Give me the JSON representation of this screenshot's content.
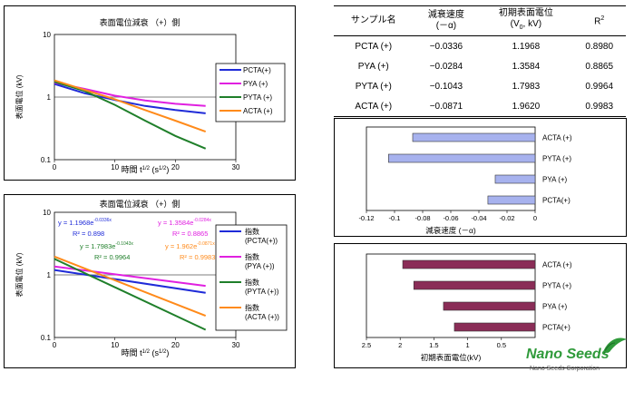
{
  "chart_data": [
    {
      "type": "line",
      "title": "表面電位減衰 （+）側",
      "xlabel": "時間 t1/2 (s1/2)",
      "ylabel": "表面電位 (kV)",
      "xlim": [
        0,
        30
      ],
      "ylim": [
        0.1,
        10
      ],
      "yscale": "log",
      "x_ticks": [
        "0",
        "10",
        "20",
        "30"
      ],
      "y_ticks": [
        "0.1",
        "1",
        "10"
      ],
      "legend_placement": "right",
      "series": [
        {
          "name": "PCTA(+)",
          "color": "#1f2bd8",
          "x": [
            0,
            5,
            10,
            15,
            20,
            25
          ],
          "y": [
            1.62,
            1.15,
            0.9,
            0.72,
            0.62,
            0.55
          ]
        },
        {
          "name": "PYA (+)",
          "color": "#e020e0",
          "x": [
            0,
            5,
            10,
            15,
            20,
            25
          ],
          "y": [
            1.7,
            1.35,
            1.05,
            0.88,
            0.78,
            0.72
          ]
        },
        {
          "name": "PYTA (+)",
          "color": "#1f7f2a",
          "x": [
            0,
            5,
            10,
            15,
            20,
            25
          ],
          "y": [
            1.75,
            1.25,
            0.75,
            0.42,
            0.24,
            0.15
          ]
        },
        {
          "name": "ACTA (+)",
          "color": "#ff8a1a",
          "x": [
            0,
            5,
            10,
            15,
            20,
            25
          ],
          "y": [
            1.85,
            1.3,
            0.92,
            0.62,
            0.42,
            0.28
          ]
        }
      ]
    },
    {
      "type": "line",
      "title": "表面電位減衰 （+）側",
      "xlabel": "時間 t1/2 (s1/2)",
      "ylabel": "表面電位 (kV)",
      "xlim": [
        0,
        30
      ],
      "ylim": [
        0.1,
        10
      ],
      "yscale": "log",
      "x_ticks": [
        "0",
        "10",
        "20",
        "30"
      ],
      "y_ticks": [
        "0.1",
        "1",
        "10"
      ],
      "legend_placement": "right",
      "series": [
        {
          "name": "指数 (PCTA(+))",
          "color": "#1f2bd8",
          "x": [
            0,
            25
          ],
          "y": [
            1.1968,
            0.518
          ]
        },
        {
          "name": "指数 (PYA (+))",
          "color": "#e020e0",
          "x": [
            0,
            25
          ],
          "y": [
            1.3584,
            0.667
          ]
        },
        {
          "name": "指数 (PYTA (+))",
          "color": "#1f7f2a",
          "x": [
            0,
            25
          ],
          "y": [
            1.7983,
            0.133
          ]
        },
        {
          "name": "指数 (ACTA (+))",
          "color": "#ff8a1a",
          "x": [
            0,
            25
          ],
          "y": [
            1.962,
            0.222
          ]
        }
      ],
      "annotations": [
        {
          "eq": "y = 1.1968e",
          "exp": "-0.0336x",
          "r2": "R² = 0.898",
          "color": "#1f2bd8"
        },
        {
          "eq": "y = 1.3584e",
          "exp": "-0.0284x",
          "r2": "R² = 0.8865",
          "color": "#e020e0"
        },
        {
          "eq": "y = 1.7983e",
          "exp": "-0.1043x",
          "r2": "R² = 0.9964",
          "color": "#1f7f2a"
        },
        {
          "eq": "y = 1.962e",
          "exp": "-0.0871x",
          "r2": "R² = 0.9983",
          "color": "#ff8a1a"
        }
      ]
    },
    {
      "type": "table",
      "headers": [
        "サンプル名",
        "減衰速度\n(－α)",
        "初期表面電位\n(V0, kV)",
        "R2"
      ],
      "rows": [
        [
          "PCTA (+)",
          "−0.0336",
          "1.1968",
          "0.8980"
        ],
        [
          "PYA (+)",
          "−0.0284",
          "1.3584",
          "0.8865"
        ],
        [
          "PYTA (+)",
          "−0.1043",
          "1.7983",
          "0.9964"
        ],
        [
          "ACTA (+)",
          "−0.0871",
          "1.9620",
          "0.9983"
        ]
      ]
    },
    {
      "type": "bar",
      "orientation": "horizontal",
      "xlabel": "減衰速度 (－α)",
      "categories": [
        "ACTA (+)",
        "PYTA (+)",
        "PYA (+)",
        "PCTA(+)"
      ],
      "values": [
        -0.0871,
        -0.1043,
        -0.0284,
        -0.0336
      ],
      "xlim": [
        -0.12,
        0
      ],
      "x_ticks": [
        "-0.12",
        "-0.1",
        "-0.08",
        "-0.06",
        "-0.04",
        "-0.02",
        "0"
      ],
      "color": "#a7b2ee"
    },
    {
      "type": "bar",
      "orientation": "horizontal",
      "xlabel": "初期表面電位(kV)",
      "categories": [
        "ACTA (+)",
        "PYTA (+)",
        "PYA (+)",
        "PCTA(+)"
      ],
      "values": [
        1.962,
        1.7983,
        1.3584,
        1.1968
      ],
      "xlim": [
        2.5,
        0
      ],
      "x_ticks": [
        "2.5",
        "2",
        "1.5",
        "1",
        "0.5"
      ],
      "color": "#8a2d57"
    }
  ],
  "table": {
    "h1": "サンプル名",
    "h2a": "減衰速度",
    "h2b": "(－α)",
    "h3a": "初期表面電位",
    "h3b_pre": "(V",
    "h3b_sub": "0",
    "h3b_post": ", kV)",
    "h4": "R",
    "h4_sup": "2"
  },
  "brand": {
    "name": "Nano Seeds",
    "tagline": "Nano Seeds Corporation",
    "color": "#2f9a3a"
  }
}
